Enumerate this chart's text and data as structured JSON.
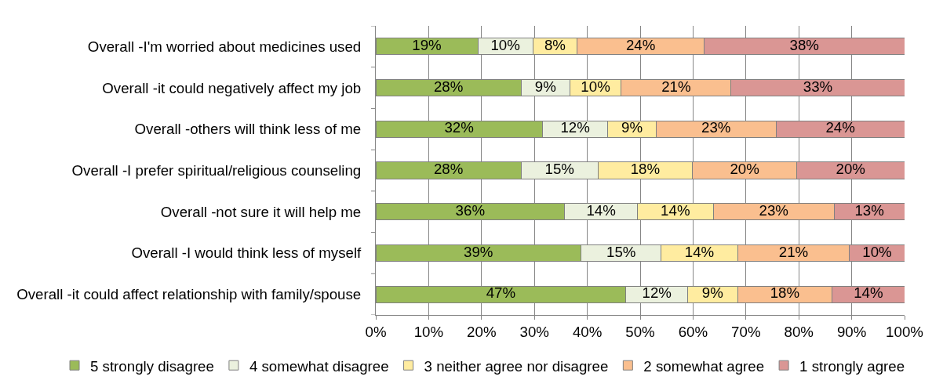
{
  "chart_data": {
    "type": "bar",
    "orientation": "horizontal",
    "stacked": true,
    "categories": [
      "Overall -I'm worried about medicines used",
      "Overall -it could negatively affect my job",
      "Overall -others will think less of me",
      "Overall -I prefer spiritual/religious counseling",
      "Overall -not sure it will help me",
      "Overall -I would think less of myself",
      "Overall -it could affect relationship with family/spouse"
    ],
    "series": [
      {
        "name": "5 strongly disagree",
        "color": "#9bbb59",
        "values": [
          19.3,
          27.5,
          31.5,
          27.5,
          35.7,
          38.8,
          47.3
        ],
        "value_labels": [
          "19%",
          "28%",
          "32%",
          "28%",
          "36%",
          "39%",
          "47%"
        ]
      },
      {
        "name": "4 somewhat disagree",
        "color": "#ebf1de",
        "values": [
          10.4,
          9.2,
          12.4,
          14.5,
          13.8,
          15.2,
          11.7
        ],
        "value_labels": [
          "10%",
          "9%",
          "12%",
          "15%",
          "14%",
          "15%",
          "12%"
        ]
      },
      {
        "name": "3 neither agree nor disagree",
        "color": "#ffeca0",
        "values": [
          8.4,
          9.7,
          9.1,
          17.9,
          14.3,
          14.4,
          9.4
        ],
        "value_labels": [
          "8%",
          "10%",
          "9%",
          "18%",
          "14%",
          "14%",
          "9%"
        ]
      },
      {
        "name": "2 somewhat agree",
        "color": "#fabf8f",
        "values": [
          24.0,
          20.8,
          22.7,
          19.7,
          22.9,
          21.2,
          17.9
        ],
        "value_labels": [
          "24%",
          "21%",
          "23%",
          "20%",
          "23%",
          "21%",
          "18%"
        ]
      },
      {
        "name": "1 strongly agree",
        "color": "#da9694",
        "values": [
          37.9,
          32.8,
          24.3,
          20.4,
          13.3,
          10.4,
          13.7
        ],
        "value_labels": [
          "38%",
          "33%",
          "24%",
          "20%",
          "13%",
          "10%",
          "14%"
        ]
      }
    ],
    "xlim": [
      0,
      100
    ],
    "xticks": [
      {
        "value": 0,
        "label": "0%"
      },
      {
        "value": 10,
        "label": "10%"
      },
      {
        "value": 20,
        "label": "20%"
      },
      {
        "value": 30,
        "label": "30%"
      },
      {
        "value": 40,
        "label": "40%"
      },
      {
        "value": 50,
        "label": "50%"
      },
      {
        "value": 60,
        "label": "60%"
      },
      {
        "value": 70,
        "label": "70%"
      },
      {
        "value": 80,
        "label": "80%"
      },
      {
        "value": 90,
        "label": "90%"
      },
      {
        "value": 100,
        "label": "100%"
      }
    ],
    "grid": "x",
    "legend": "bottom"
  }
}
